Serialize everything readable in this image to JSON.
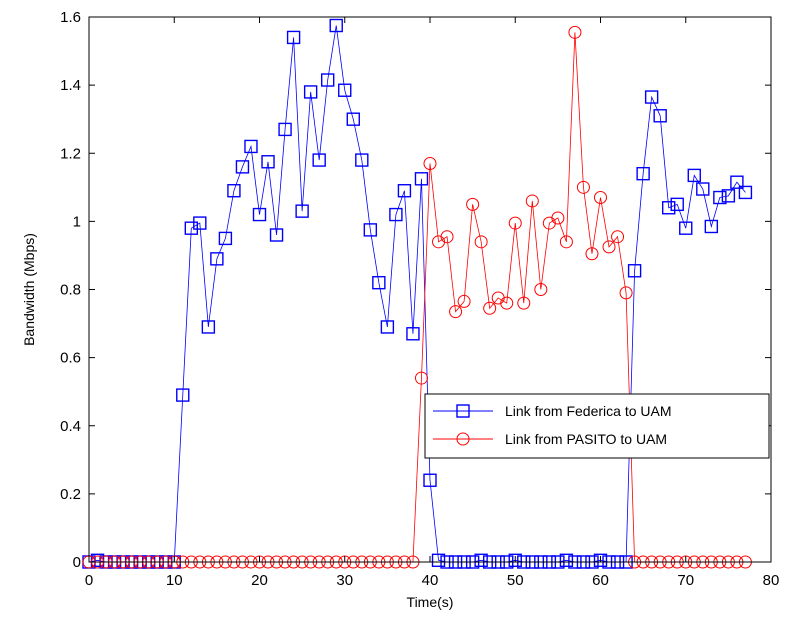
{
  "chart_data": {
    "type": "line",
    "title": "",
    "xlabel": "Time(s)",
    "ylabel": "Bandwidth (Mbps)",
    "xlim": [
      0,
      80
    ],
    "ylim": [
      0,
      1.6
    ],
    "xticks": [
      0,
      10,
      20,
      30,
      40,
      50,
      60,
      70,
      80
    ],
    "yticks": [
      0,
      0.2,
      0.4,
      0.6,
      0.8,
      1,
      1.2,
      1.4,
      1.6
    ],
    "xtick_labels": [
      "0",
      "10",
      "20",
      "30",
      "40",
      "50",
      "60",
      "70",
      "80"
    ],
    "ytick_labels": [
      "0",
      "0.2",
      "0.4",
      "0.6",
      "0.8",
      "1",
      "1.2",
      "1.4",
      "1.6"
    ],
    "grid": false,
    "legend_position": "lower-right",
    "series": [
      {
        "name": "Link from Federica to UAM",
        "color": "#0000ff",
        "marker": "square",
        "x": [
          0,
          1,
          2,
          3,
          4,
          5,
          6,
          7,
          8,
          9,
          10,
          11,
          12,
          13,
          14,
          15,
          16,
          17,
          18,
          19,
          20,
          21,
          22,
          23,
          24,
          25,
          26,
          27,
          28,
          29,
          30,
          31,
          32,
          33,
          34,
          35,
          36,
          37,
          38,
          39,
          40,
          41,
          42,
          43,
          44,
          45,
          46,
          47,
          48,
          49,
          50,
          51,
          52,
          53,
          54,
          55,
          56,
          57,
          58,
          59,
          60,
          61,
          62,
          63,
          64,
          65,
          66,
          67,
          68,
          69,
          70,
          71,
          72,
          73,
          74,
          75,
          76,
          77
        ],
        "y": [
          0,
          0.005,
          0,
          0,
          0,
          0,
          0,
          0,
          0,
          0,
          0,
          0.49,
          0.98,
          0.995,
          0.69,
          0.89,
          0.95,
          1.09,
          1.16,
          1.22,
          1.02,
          1.175,
          0.96,
          1.27,
          1.54,
          1.03,
          1.38,
          1.18,
          1.415,
          1.575,
          1.385,
          1.3,
          1.18,
          0.975,
          0.82,
          0.69,
          1.02,
          1.09,
          0.67,
          1.125,
          0.24,
          0.005,
          0,
          0,
          0,
          0,
          0.005,
          0,
          0,
          0,
          0.005,
          0,
          0,
          0,
          0,
          0,
          0.005,
          0,
          0,
          0,
          0.005,
          0,
          0,
          0,
          0.855,
          1.14,
          1.365,
          1.31,
          1.04,
          1.05,
          0.98,
          1.135,
          1.095,
          0.985,
          1.07,
          1.075,
          1.115,
          1.085
        ]
      },
      {
        "name": "Link from PASITO to UAM",
        "color": "#ff0000",
        "marker": "circle",
        "x": [
          0,
          1,
          2,
          3,
          4,
          5,
          6,
          7,
          8,
          9,
          10,
          11,
          12,
          13,
          14,
          15,
          16,
          17,
          18,
          19,
          20,
          21,
          22,
          23,
          24,
          25,
          26,
          27,
          28,
          29,
          30,
          31,
          32,
          33,
          34,
          35,
          36,
          37,
          38,
          39,
          40,
          41,
          42,
          43,
          44,
          45,
          46,
          47,
          48,
          49,
          50,
          51,
          52,
          53,
          54,
          55,
          56,
          57,
          58,
          59,
          60,
          61,
          62,
          63,
          64,
          65,
          66,
          67,
          68,
          69,
          70,
          71,
          72,
          73,
          74,
          75,
          76,
          77
        ],
        "y": [
          0,
          0,
          0,
          0,
          0,
          0,
          0,
          0,
          0,
          0,
          0,
          0,
          0,
          0,
          0,
          0,
          0,
          0,
          0,
          0,
          0,
          0,
          0,
          0,
          0,
          0,
          0,
          0,
          0,
          0,
          0,
          0,
          0,
          0,
          0,
          0,
          0,
          0,
          0,
          0.54,
          1.17,
          0.94,
          0.955,
          0.735,
          0.765,
          1.05,
          0.94,
          0.745,
          0.775,
          0.76,
          0.995,
          0.76,
          1.06,
          0.8,
          0.995,
          1.01,
          0.94,
          1.555,
          1.1,
          0.905,
          1.07,
          0.925,
          0.955,
          0.79,
          0,
          0,
          0,
          0,
          0,
          0,
          0,
          0,
          0,
          0,
          0,
          0,
          0,
          0
        ]
      }
    ]
  }
}
